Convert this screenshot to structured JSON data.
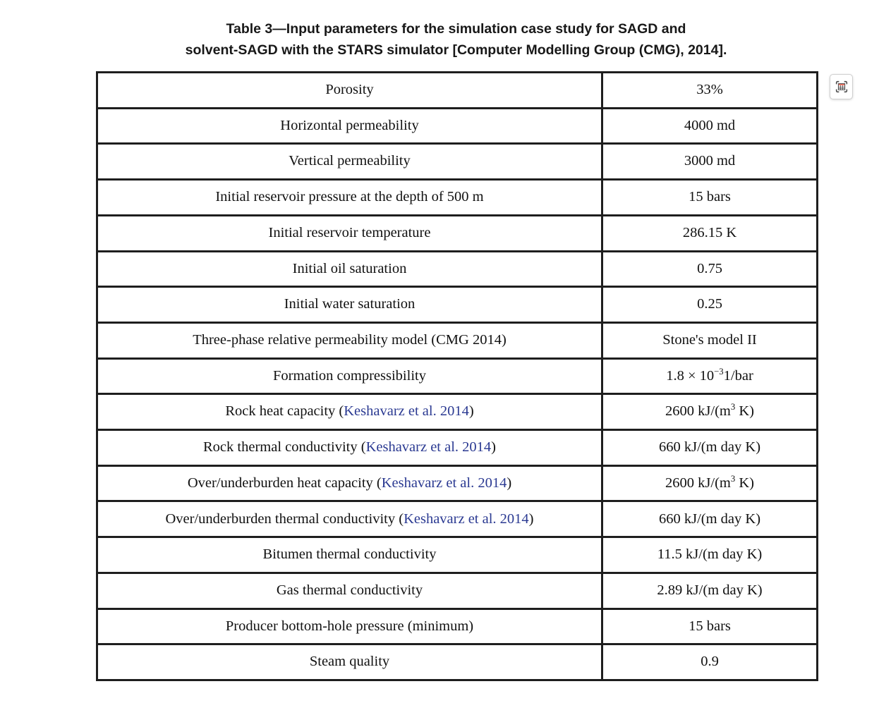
{
  "page": {
    "background": "#ffffff"
  },
  "colors": {
    "link_blue": "#2b3a92",
    "table_border": "#1e1e1e",
    "icon_red": "#e06a5a",
    "icon_gray": "#4d4d4d"
  },
  "title": {
    "line1": "Table 3—Input parameters for the simulation case study for SAGD and",
    "line2": "solvent-SAGD with the STARS simulator [Computer Modelling Group (CMG), 2014]."
  },
  "expand_button": {
    "icon": "table-fullscreen-icon"
  },
  "table": {
    "rows": [
      {
        "param": [
          {
            "t": "text",
            "v": "Porosity"
          }
        ],
        "value": [
          {
            "t": "text",
            "v": "33%"
          }
        ]
      },
      {
        "param": [
          {
            "t": "text",
            "v": "Horizontal permeability"
          }
        ],
        "value": [
          {
            "t": "text",
            "v": "4000 md"
          }
        ]
      },
      {
        "param": [
          {
            "t": "text",
            "v": "Vertical permeability"
          }
        ],
        "value": [
          {
            "t": "text",
            "v": "3000 md"
          }
        ]
      },
      {
        "param": [
          {
            "t": "text",
            "v": "Initial reservoir pressure at the depth of 500 m"
          }
        ],
        "value": [
          {
            "t": "text",
            "v": "15 bars"
          }
        ]
      },
      {
        "param": [
          {
            "t": "text",
            "v": "Initial reservoir temperature"
          }
        ],
        "value": [
          {
            "t": "text",
            "v": "286.15 K"
          }
        ]
      },
      {
        "param": [
          {
            "t": "text",
            "v": "Initial oil saturation"
          }
        ],
        "value": [
          {
            "t": "text",
            "v": "0.75"
          }
        ]
      },
      {
        "param": [
          {
            "t": "text",
            "v": "Initial water saturation"
          }
        ],
        "value": [
          {
            "t": "text",
            "v": "0.25"
          }
        ]
      },
      {
        "param": [
          {
            "t": "text",
            "v": "Three-phase relative permeability model (CMG 2014)"
          }
        ],
        "value": [
          {
            "t": "text",
            "v": "Stone's model II"
          }
        ]
      },
      {
        "param": [
          {
            "t": "text",
            "v": "Formation compressibility"
          }
        ],
        "value": [
          {
            "t": "text",
            "v": "1.8 × 10"
          },
          {
            "t": "sup",
            "v": "−3"
          },
          {
            "t": "text",
            "v": "1/bar"
          }
        ]
      },
      {
        "param": [
          {
            "t": "text",
            "v": "Rock heat capacity ("
          },
          {
            "t": "link",
            "v": "Keshavarz et al. 2014"
          },
          {
            "t": "text",
            "v": ")"
          }
        ],
        "value": [
          {
            "t": "text",
            "v": "2600 kJ/(m"
          },
          {
            "t": "sup",
            "v": "3"
          },
          {
            "t": "text",
            "v": " K)"
          }
        ]
      },
      {
        "param": [
          {
            "t": "text",
            "v": "Rock thermal conductivity ("
          },
          {
            "t": "link",
            "v": "Keshavarz et al. 2014"
          },
          {
            "t": "text",
            "v": ")"
          }
        ],
        "value": [
          {
            "t": "text",
            "v": "660 kJ/(m day K)"
          }
        ]
      },
      {
        "param": [
          {
            "t": "text",
            "v": "Over/underburden heat capacity ("
          },
          {
            "t": "link",
            "v": "Keshavarz et al. 2014"
          },
          {
            "t": "text",
            "v": ")"
          }
        ],
        "value": [
          {
            "t": "text",
            "v": "2600 kJ/(m"
          },
          {
            "t": "sup",
            "v": "3"
          },
          {
            "t": "text",
            "v": " K)"
          }
        ]
      },
      {
        "param": [
          {
            "t": "text",
            "v": "Over/underburden thermal conductivity ("
          },
          {
            "t": "link",
            "v": "Keshavarz et al. 2014"
          },
          {
            "t": "text",
            "v": ")"
          }
        ],
        "value": [
          {
            "t": "text",
            "v": "660 kJ/(m day K)"
          }
        ]
      },
      {
        "param": [
          {
            "t": "text",
            "v": "Bitumen thermal conductivity"
          }
        ],
        "value": [
          {
            "t": "text",
            "v": "11.5 kJ/(m day K)"
          }
        ]
      },
      {
        "param": [
          {
            "t": "text",
            "v": "Gas thermal conductivity"
          }
        ],
        "value": [
          {
            "t": "text",
            "v": "2.89 kJ/(m day K)"
          }
        ]
      },
      {
        "param": [
          {
            "t": "text",
            "v": "Producer bottom-hole pressure (minimum)"
          }
        ],
        "value": [
          {
            "t": "text",
            "v": "15 bars"
          }
        ]
      },
      {
        "param": [
          {
            "t": "text",
            "v": "Steam quality"
          }
        ],
        "value": [
          {
            "t": "text",
            "v": "0.9"
          }
        ]
      }
    ]
  }
}
